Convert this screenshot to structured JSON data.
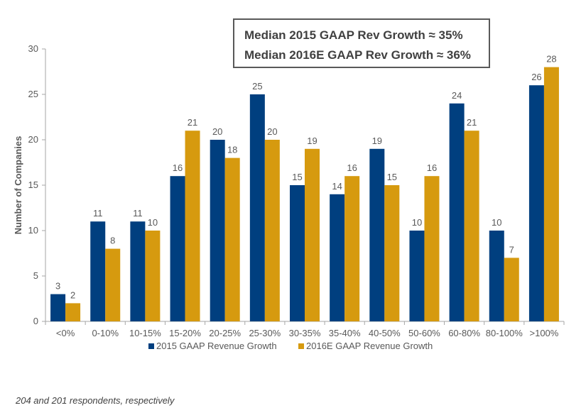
{
  "chart_data": {
    "type": "bar",
    "categories": [
      "<0%",
      "0-10%",
      "10-15%",
      "15-20%",
      "20-25%",
      "25-30%",
      "30-35%",
      "35-40%",
      "40-50%",
      "50-60%",
      "60-80%",
      "80-100%",
      ">100%"
    ],
    "series": [
      {
        "name": "2015 GAAP Revenue Growth",
        "color": "#003f7f",
        "values": [
          3,
          11,
          11,
          16,
          20,
          25,
          15,
          14,
          19,
          10,
          24,
          10,
          26
        ]
      },
      {
        "name": "2016E GAAP Revenue Growth",
        "color": "#d69a0f",
        "values": [
          2,
          8,
          10,
          21,
          18,
          20,
          19,
          16,
          15,
          16,
          21,
          7,
          28
        ]
      }
    ],
    "ylabel": "Number of Companies",
    "xlabel": "",
    "ylim": [
      0,
      30
    ],
    "yticks": [
      0,
      5,
      10,
      15,
      20,
      25,
      30
    ],
    "grid": false,
    "legend_position": "bottom",
    "annotations": [
      "Median 2015 GAAP Rev Growth ≈ 35%",
      "Median 2016E GAAP Rev Growth ≈ 36%"
    ]
  },
  "footnote": "204 and 201 respondents, respectively"
}
